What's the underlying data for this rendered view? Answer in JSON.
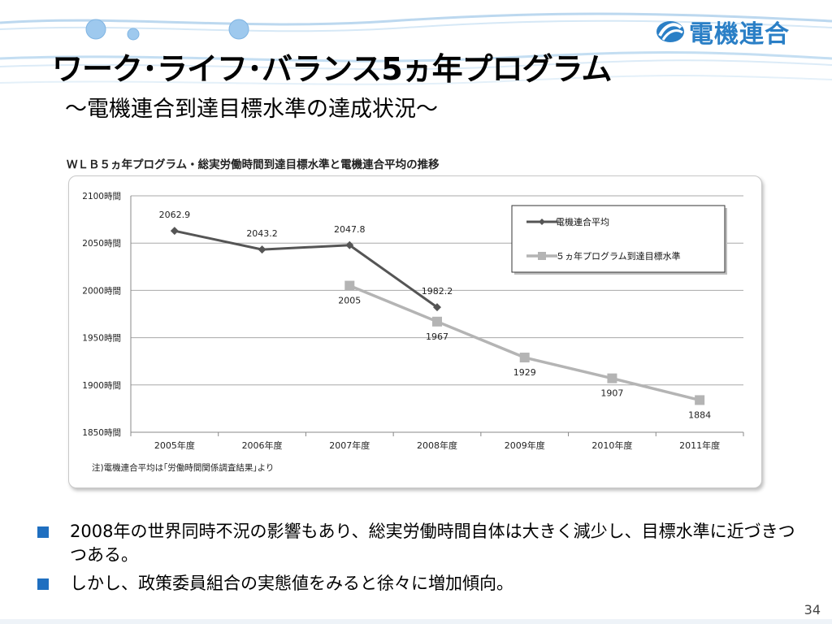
{
  "slide": {
    "logo_text": "電機連合",
    "title": "ワーク･ライフ･バランス5ヵ年プログラム",
    "subtitle": "～電機連合到達目標水準の達成状況～",
    "page_number": "34",
    "bullets": [
      "2008年の世界同時不況の影響もあり、総実労働時間自体は大きく減少し、目標水準に近づきつつある。",
      "しかし、政策委員組合の実態値をみると徐々に増加傾向。"
    ],
    "colors": {
      "accent_blue": "#2a7fc6",
      "bullet_blue": "#1f6fc0",
      "series_dark": "#555555",
      "series_light": "#b4b4b4"
    }
  },
  "chart_data": {
    "type": "line",
    "title": "ＷＬＢ５ヵ年プログラム・総実労働時間到達目標水準と電機連合平均の推移",
    "note": "注)電機連合平均は｢労働時間関係調査結果｣より",
    "categories": [
      "2005年度",
      "2006年度",
      "2007年度",
      "2008年度",
      "2009年度",
      "2010年度",
      "2011年度"
    ],
    "y_ticks": [
      "2100時間",
      "2050時間",
      "2000時間",
      "1950時間",
      "1900時間",
      "1850時間"
    ],
    "ylim": [
      1850,
      2100
    ],
    "grid": true,
    "legend_position": "top-right",
    "series": [
      {
        "name": "電機連合平均",
        "marker": "diamond",
        "values": [
          2062.9,
          2043.2,
          2047.8,
          1982.2,
          null,
          null,
          null
        ],
        "labels": [
          "2062.9",
          "2043.2",
          "2047.8",
          "1982.2",
          "",
          "",
          ""
        ]
      },
      {
        "name": "５ヵ年プログラム到達目標水準",
        "marker": "square",
        "values": [
          null,
          null,
          2005,
          1967,
          1929,
          1907,
          1884
        ],
        "labels": [
          "",
          "",
          "2005",
          "1967",
          "1929",
          "1907",
          "1884"
        ]
      }
    ]
  }
}
